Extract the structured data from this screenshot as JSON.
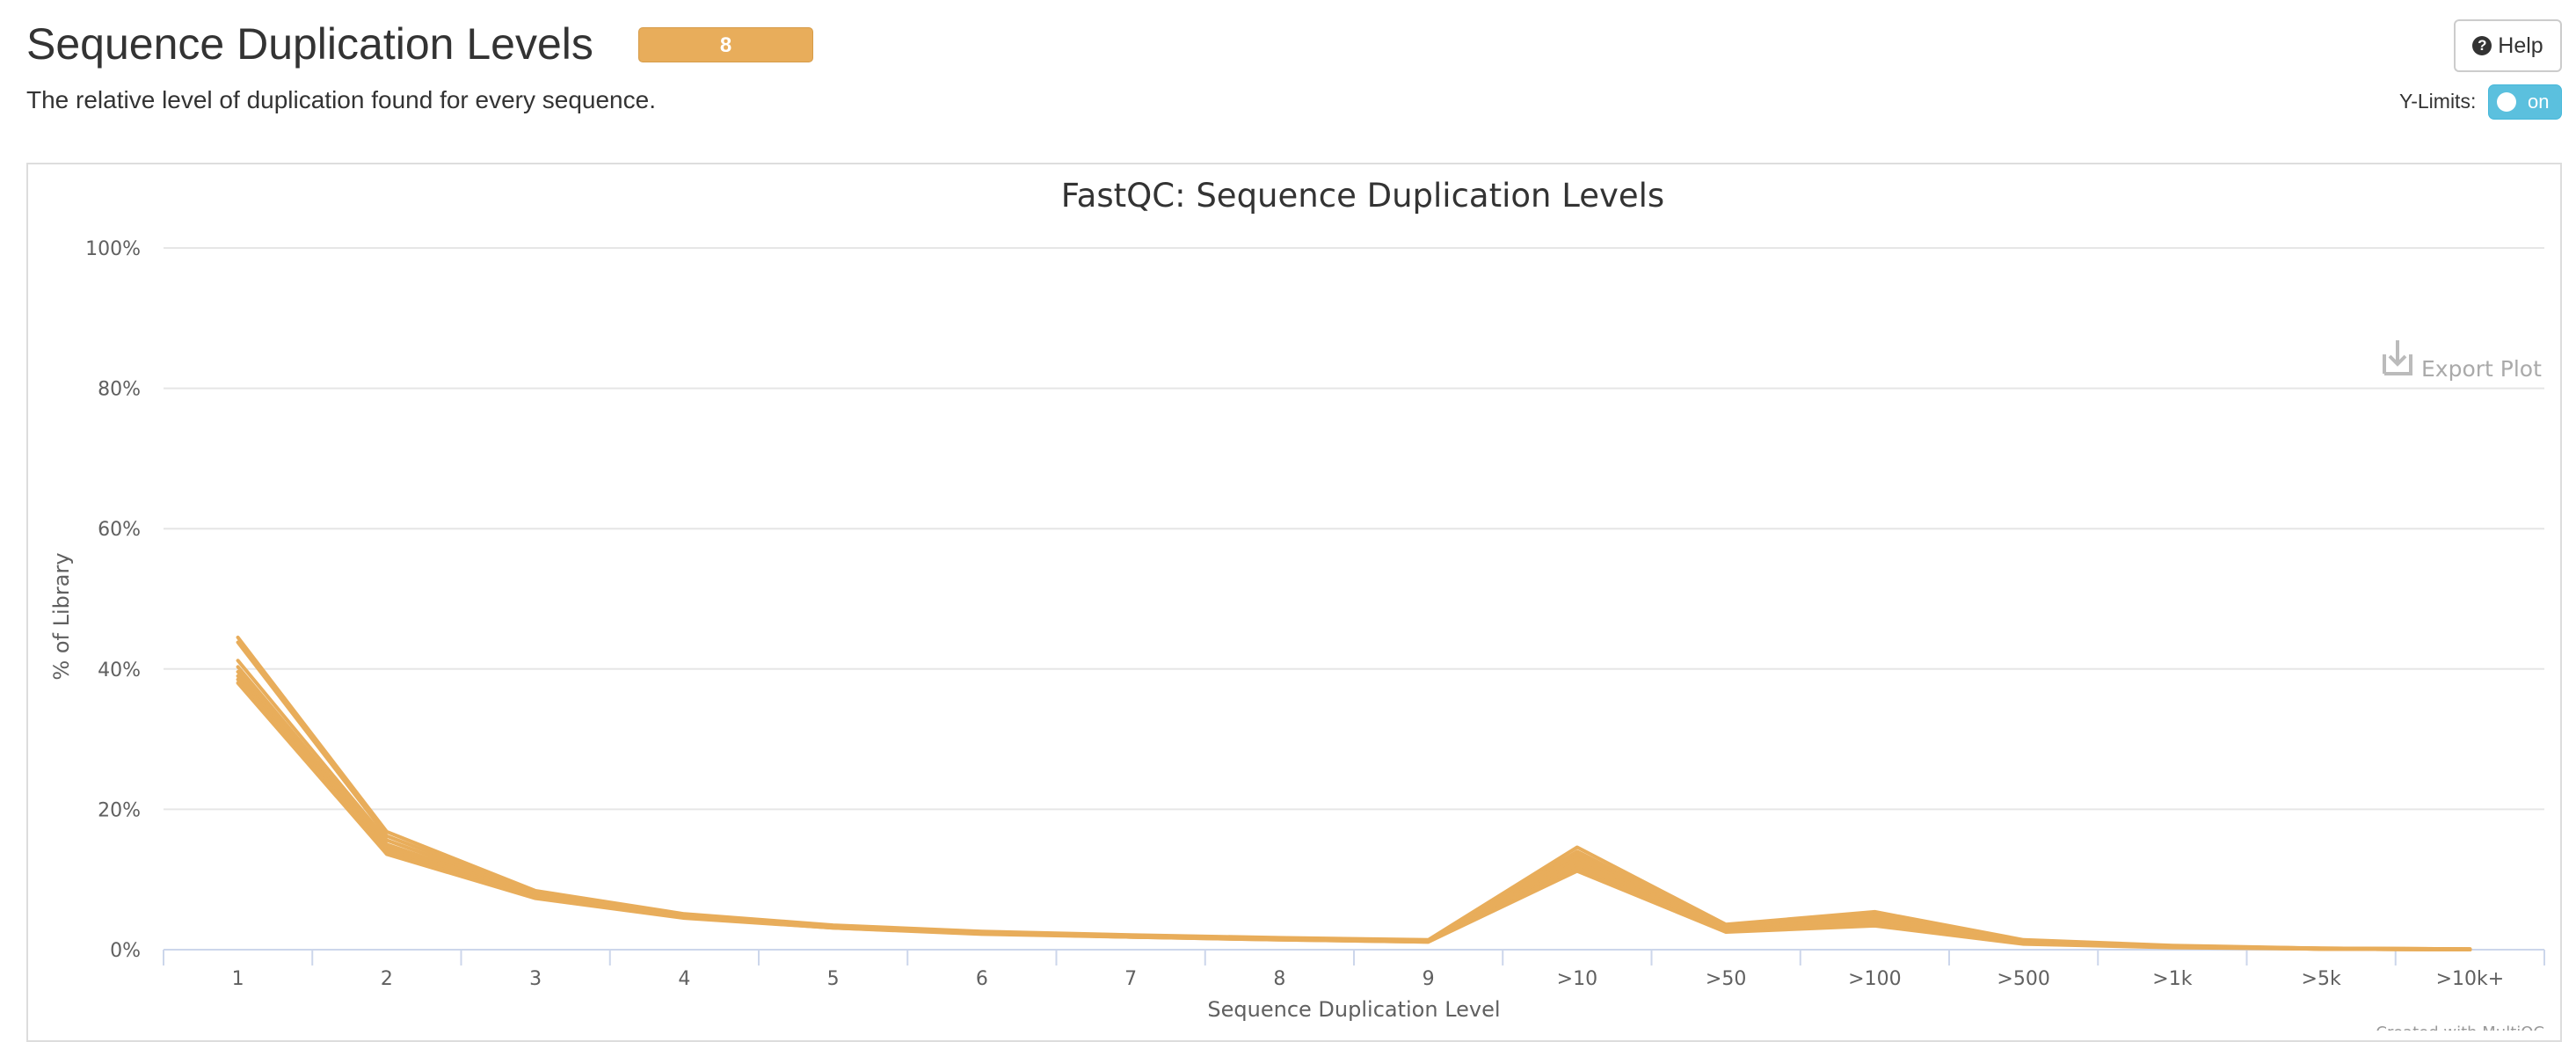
{
  "header": {
    "title": "Sequence Duplication Levels",
    "badge": "8",
    "subtitle": "The relative level of duplication found for every sequence.",
    "help_label": "Help",
    "ylimits_label": "Y-Limits:",
    "toggle_label": "on"
  },
  "colors": {
    "accent": "#e8ad5b",
    "series": "#e8ad5b",
    "toggle": "#5bc0de"
  },
  "plot": {
    "export_label": "Export Plot",
    "credit": "Created with MultiQC"
  },
  "chart_data": {
    "type": "line",
    "title": "FastQC: Sequence Duplication Levels",
    "xlabel": "Sequence Duplication Level",
    "ylabel": "% of Library",
    "categories": [
      "1",
      "2",
      "3",
      "4",
      "5",
      "6",
      "7",
      "8",
      "9",
      ">10",
      ">50",
      ">100",
      ">500",
      ">1k",
      ">5k",
      ">10k+"
    ],
    "yticks": [
      "0%",
      "20%",
      "40%",
      "60%",
      "80%",
      "100%"
    ],
    "ylim": [
      0,
      100
    ],
    "grid": true,
    "series": [
      {
        "values": [
          44.5,
          16.8,
          8.4,
          5.1,
          3.5,
          2.6,
          2.1,
          1.7,
          1.4,
          14.6,
          3.6,
          5.4,
          1.4,
          0.6,
          0.2,
          0.1
        ]
      },
      {
        "values": [
          43.8,
          16.2,
          8.2,
          5.0,
          3.4,
          2.5,
          2.0,
          1.6,
          1.3,
          14.0,
          3.3,
          5.0,
          1.3,
          0.5,
          0.2,
          0.1
        ]
      },
      {
        "values": [
          41.2,
          15.6,
          8.0,
          4.9,
          3.4,
          2.5,
          2.0,
          1.6,
          1.3,
          13.5,
          3.1,
          4.6,
          1.2,
          0.5,
          0.2,
          0.1
        ]
      },
      {
        "values": [
          40.3,
          15.0,
          7.8,
          4.8,
          3.3,
          2.4,
          1.9,
          1.5,
          1.2,
          13.0,
          3.0,
          4.3,
          1.1,
          0.5,
          0.1,
          0.0
        ]
      },
      {
        "values": [
          39.6,
          14.6,
          7.6,
          4.7,
          3.2,
          2.4,
          1.9,
          1.5,
          1.2,
          12.5,
          2.8,
          4.0,
          1.0,
          0.4,
          0.1,
          0.0
        ]
      },
      {
        "values": [
          39.0,
          14.2,
          7.5,
          4.6,
          3.2,
          2.3,
          1.8,
          1.5,
          1.2,
          12.0,
          2.7,
          3.8,
          0.9,
          0.4,
          0.1,
          0.0
        ]
      },
      {
        "values": [
          38.5,
          13.9,
          7.4,
          4.6,
          3.1,
          2.3,
          1.8,
          1.4,
          1.1,
          11.6,
          2.6,
          3.6,
          0.9,
          0.4,
          0.1,
          0.0
        ]
      },
      {
        "values": [
          38.0,
          13.6,
          7.3,
          4.5,
          3.1,
          2.2,
          1.8,
          1.4,
          1.1,
          11.2,
          2.5,
          3.4,
          0.8,
          0.3,
          0.1,
          0.0
        ]
      }
    ]
  }
}
